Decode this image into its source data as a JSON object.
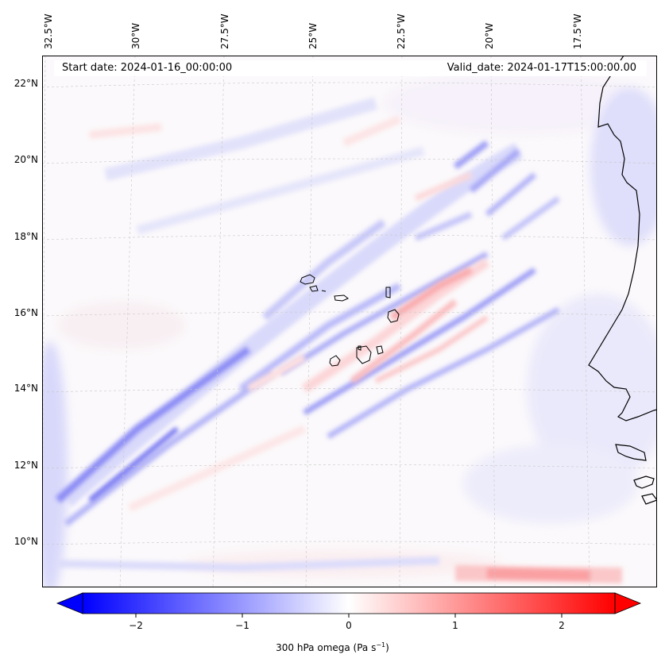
{
  "map": {
    "start_date": "Start date: 2024-01-16_00:00:00",
    "valid_date": "Valid_date: 2024-01-17T15:00:00.00",
    "lon_labels": [
      "32.5°W",
      "30°W",
      "27.5°W",
      "25°W",
      "22.5°W",
      "20°W",
      "17.5°W"
    ],
    "lat_labels": [
      "22°N",
      "20°N",
      "18°N",
      "16°N",
      "14°N",
      "12°N",
      "10°N"
    ],
    "colorbar": {
      "ticks": [
        "−2",
        "−1",
        "0",
        "1",
        "2"
      ],
      "label": "300 hPa omega (Pa s",
      "label_sup": "−1",
      "label_end": ")",
      "vmin": -2.6,
      "vmax": 2.6,
      "neg_color": "#0000ff",
      "pos_color": "#ff0000"
    },
    "coast_color": "#000000"
  }
}
